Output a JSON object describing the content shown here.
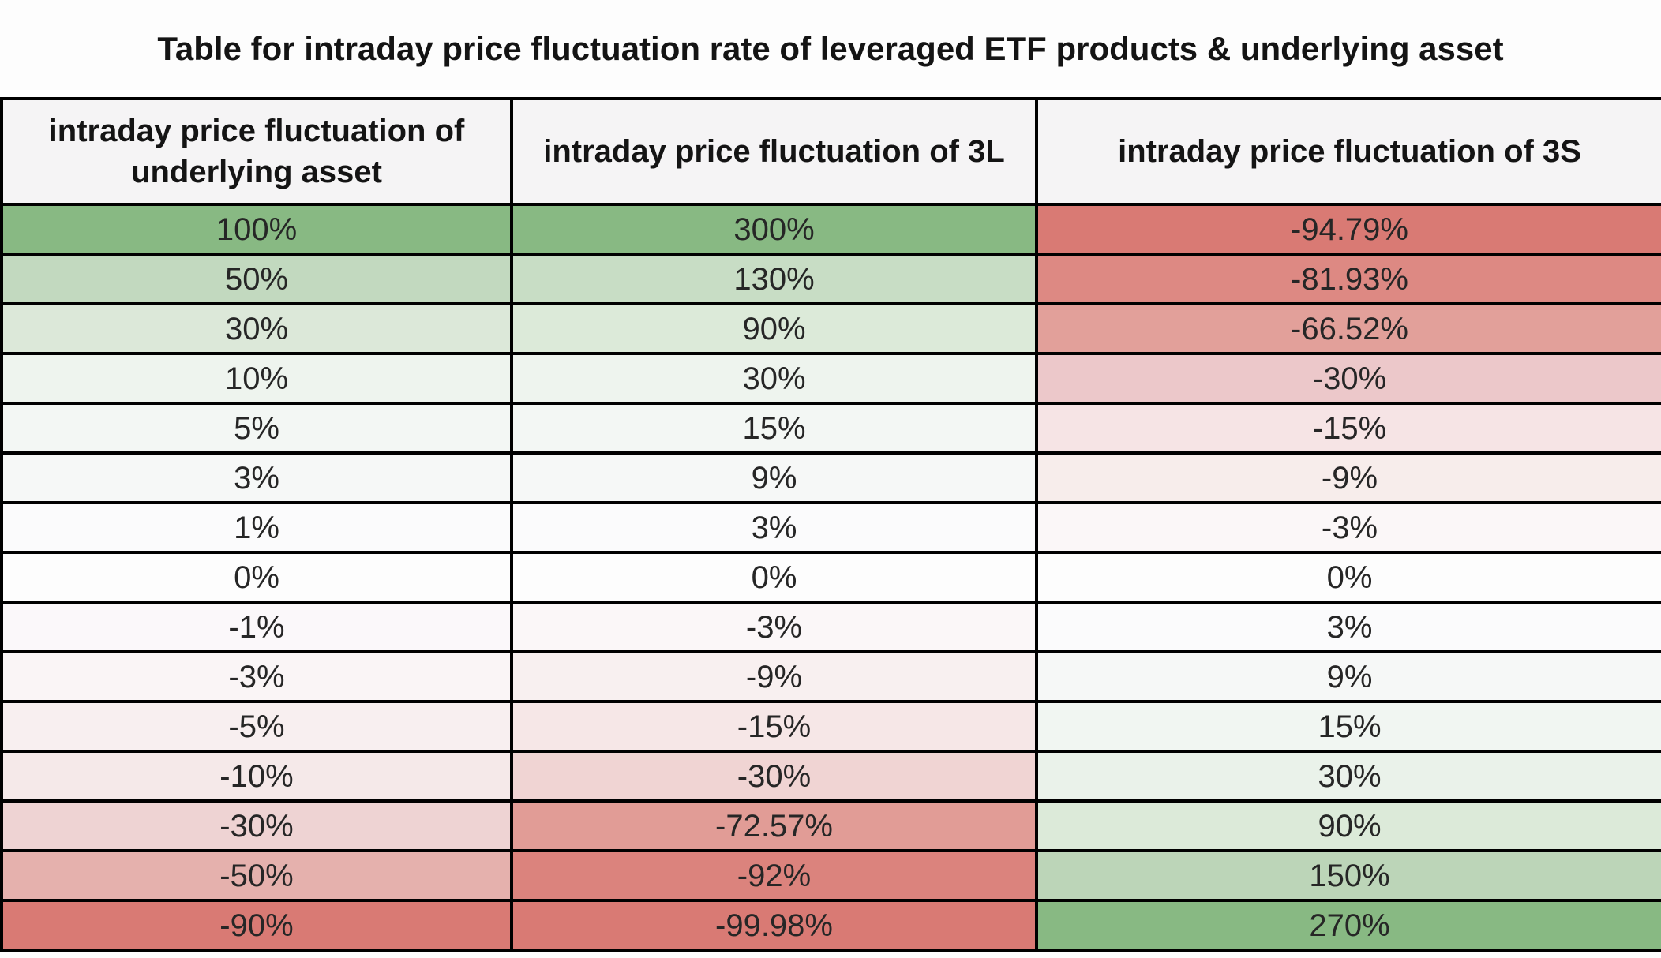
{
  "title": "Table for intraday price fluctuation rate of leveraged ETF products & underlying asset",
  "table": {
    "columns": [
      {
        "label": "intraday price fluctuation of underlying asset"
      },
      {
        "label": "intraday price fluctuation of 3L"
      },
      {
        "label": "intraday price fluctuation of 3S"
      }
    ],
    "rows": [
      {
        "cells": [
          {
            "text": "100%",
            "bg": "#88b983"
          },
          {
            "text": "300%",
            "bg": "#88b983"
          },
          {
            "text": "-94.79%",
            "bg": "#d97a74"
          }
        ]
      },
      {
        "cells": [
          {
            "text": "50%",
            "bg": "#c2d9bf"
          },
          {
            "text": "130%",
            "bg": "#c8ddc5"
          },
          {
            "text": "-81.93%",
            "bg": "#dd8983"
          }
        ]
      },
      {
        "cells": [
          {
            "text": "30%",
            "bg": "#dce8d9"
          },
          {
            "text": "90%",
            "bg": "#dcead9"
          },
          {
            "text": "-66.52%",
            "bg": "#e2a09a"
          }
        ]
      },
      {
        "cells": [
          {
            "text": "10%",
            "bg": "#eef4ee"
          },
          {
            "text": "30%",
            "bg": "#eef4ee"
          },
          {
            "text": "-30%",
            "bg": "#ecc8ca"
          }
        ]
      },
      {
        "cells": [
          {
            "text": "5%",
            "bg": "#f3f7f4"
          },
          {
            "text": "15%",
            "bg": "#f3f7f4"
          },
          {
            "text": "-15%",
            "bg": "#f6e4e5"
          }
        ]
      },
      {
        "cells": [
          {
            "text": "3%",
            "bg": "#f6f8f7"
          },
          {
            "text": "9%",
            "bg": "#f6f8f7"
          },
          {
            "text": "-9%",
            "bg": "#f7edeb"
          }
        ]
      },
      {
        "cells": [
          {
            "text": "1%",
            "bg": "#fbfbfc"
          },
          {
            "text": "3%",
            "bg": "#fbfbfc"
          },
          {
            "text": "-3%",
            "bg": "#fbf7f8"
          }
        ]
      },
      {
        "cells": [
          {
            "text": "0%",
            "bg": "#fdfdfd"
          },
          {
            "text": "0%",
            "bg": "#fdfdfd"
          },
          {
            "text": "0%",
            "bg": "#fdfdfd"
          }
        ]
      },
      {
        "cells": [
          {
            "text": "-1%",
            "bg": "#fbf8fa"
          },
          {
            "text": "-3%",
            "bg": "#fbf7f8"
          },
          {
            "text": "3%",
            "bg": "#fbfbfc"
          }
        ]
      },
      {
        "cells": [
          {
            "text": "-3%",
            "bg": "#faf5f6"
          },
          {
            "text": "-9%",
            "bg": "#f8f0f0"
          },
          {
            "text": "9%",
            "bg": "#f6f8f7"
          }
        ]
      },
      {
        "cells": [
          {
            "text": "-5%",
            "bg": "#f8eff0"
          },
          {
            "text": "-15%",
            "bg": "#f6e7e7"
          },
          {
            "text": "15%",
            "bg": "#f1f6f2"
          }
        ]
      },
      {
        "cells": [
          {
            "text": "-10%",
            "bg": "#f5e9e9"
          },
          {
            "text": "-30%",
            "bg": "#f0d4d3"
          },
          {
            "text": "30%",
            "bg": "#eaf2ea"
          }
        ]
      },
      {
        "cells": [
          {
            "text": "-30%",
            "bg": "#eed3d3"
          },
          {
            "text": "-72.57%",
            "bg": "#e19c96"
          },
          {
            "text": "90%",
            "bg": "#dcead9"
          }
        ]
      },
      {
        "cells": [
          {
            "text": "-50%",
            "bg": "#e5b1ad"
          },
          {
            "text": "-92%",
            "bg": "#db837d"
          },
          {
            "text": "150%",
            "bg": "#bcd5b8"
          }
        ]
      },
      {
        "cells": [
          {
            "text": "-90%",
            "bg": "#d97a74"
          },
          {
            "text": "-99.98%",
            "bg": "#d97a74"
          },
          {
            "text": "270%",
            "bg": "#88b983"
          }
        ]
      }
    ]
  },
  "chart_data": {
    "type": "table",
    "title": "Table for intraday price fluctuation rate of leveraged ETF products & underlying asset",
    "columns": [
      "intraday price fluctuation of underlying asset",
      "intraday price fluctuation of 3L",
      "intraday price fluctuation of 3S"
    ],
    "rows_percent": [
      [
        100,
        300,
        -94.79
      ],
      [
        50,
        130,
        -81.93
      ],
      [
        30,
        90,
        -66.52
      ],
      [
        10,
        30,
        -30
      ],
      [
        5,
        15,
        -15
      ],
      [
        3,
        9,
        -9
      ],
      [
        1,
        3,
        -3
      ],
      [
        0,
        0,
        0
      ],
      [
        -1,
        -3,
        3
      ],
      [
        -3,
        -9,
        9
      ],
      [
        -5,
        -15,
        15
      ],
      [
        -10,
        -30,
        30
      ],
      [
        -30,
        -72.57,
        90
      ],
      [
        -50,
        -92,
        150
      ],
      [
        -90,
        -99.98,
        270
      ]
    ],
    "color_scale": {
      "negative_max": "#d97a74",
      "zero": "#fdfdfd",
      "positive_max": "#88b983"
    },
    "layout": {
      "grid": true,
      "border_color": "#000000",
      "scale_applied_per_column": true
    }
  }
}
